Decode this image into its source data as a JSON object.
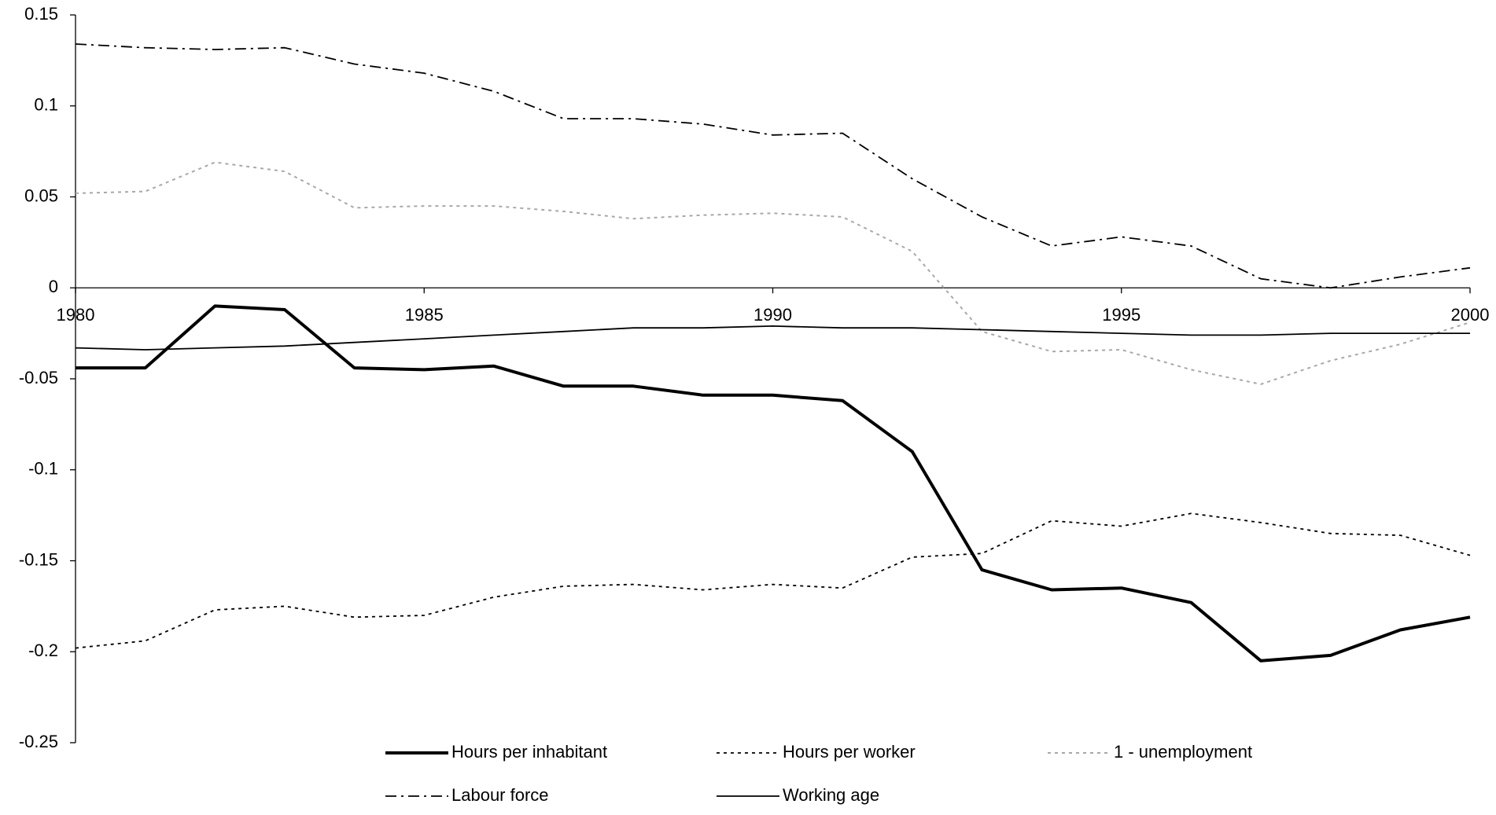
{
  "chart_data": {
    "type": "line",
    "x": [
      1980,
      1981,
      1982,
      1983,
      1984,
      1985,
      1986,
      1987,
      1988,
      1989,
      1990,
      1991,
      1992,
      1993,
      1994,
      1995,
      1996,
      1997,
      1998,
      1999,
      2000
    ],
    "xlim": [
      1980,
      2000
    ],
    "xticks": [
      1980,
      1985,
      1990,
      1995,
      2000
    ],
    "ylim": [
      -0.25,
      0.15
    ],
    "yticks": [
      0.15,
      0.1,
      0.05,
      0,
      -0.05,
      -0.1,
      -0.15,
      -0.2,
      -0.25
    ],
    "grid": false,
    "legend": "bottom",
    "series": [
      {
        "name": "Hours per inhabitant",
        "color": "#000000",
        "linestyle": "solid",
        "linewidth": 4,
        "values": [
          -0.044,
          -0.044,
          -0.01,
          -0.012,
          -0.044,
          -0.045,
          -0.043,
          -0.054,
          -0.054,
          -0.059,
          -0.059,
          -0.062,
          -0.09,
          -0.155,
          -0.166,
          -0.165,
          -0.173,
          -0.205,
          -0.202,
          -0.188,
          -0.181
        ]
      },
      {
        "name": "Hours per worker",
        "color": "#000000",
        "linestyle": "dotted",
        "linewidth": 1.8,
        "values": [
          -0.198,
          -0.194,
          -0.177,
          -0.175,
          -0.181,
          -0.18,
          -0.17,
          -0.164,
          -0.163,
          -0.166,
          -0.163,
          -0.165,
          -0.148,
          -0.146,
          -0.128,
          -0.131,
          -0.124,
          -0.129,
          -0.135,
          -0.136,
          -0.147
        ]
      },
      {
        "name": "1 - unemployment",
        "color": "#a8a8a8",
        "linestyle": "dotted",
        "linewidth": 2,
        "values": [
          0.052,
          0.053,
          0.069,
          0.064,
          0.044,
          0.045,
          0.045,
          0.042,
          0.038,
          0.04,
          0.041,
          0.039,
          0.02,
          -0.024,
          -0.035,
          -0.034,
          -0.045,
          -0.053,
          -0.04,
          -0.031,
          -0.019
        ]
      },
      {
        "name": "Labour force",
        "color": "#000000",
        "linestyle": "dashdot",
        "linewidth": 1.8,
        "values": [
          0.134,
          0.132,
          0.131,
          0.132,
          0.123,
          0.118,
          0.108,
          0.093,
          0.093,
          0.09,
          0.084,
          0.085,
          0.06,
          0.039,
          0.023,
          0.028,
          0.023,
          0.005,
          0.0,
          0.006,
          0.011
        ]
      },
      {
        "name": "Working age",
        "color": "#000000",
        "linestyle": "solid",
        "linewidth": 1.8,
        "values": [
          -0.033,
          -0.034,
          -0.033,
          -0.032,
          -0.03,
          -0.028,
          -0.026,
          -0.024,
          -0.022,
          -0.022,
          -0.021,
          -0.022,
          -0.022,
          -0.023,
          -0.024,
          -0.025,
          -0.026,
          -0.026,
          -0.025,
          -0.025,
          -0.025
        ]
      }
    ]
  }
}
